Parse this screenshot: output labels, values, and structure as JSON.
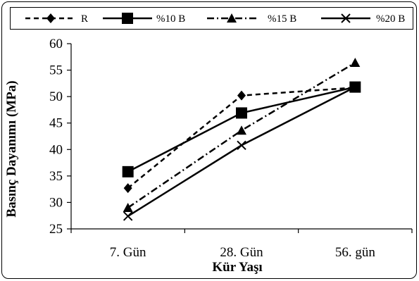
{
  "chart_data": {
    "type": "line",
    "categories": [
      "7. Gün",
      "28. Gün",
      "56. gün"
    ],
    "series": [
      {
        "name": "R",
        "values": [
          32.7,
          50.2,
          51.7
        ],
        "color": "#000000",
        "dash": "dashed",
        "marker": "diamond"
      },
      {
        "name": "%10 B",
        "values": [
          35.8,
          46.9,
          51.8
        ],
        "color": "#000000",
        "dash": "solid",
        "marker": "square"
      },
      {
        "name": "%15 B",
        "values": [
          29.0,
          43.6,
          56.4
        ],
        "color": "#000000",
        "dash": "dashdot",
        "marker": "triangle"
      },
      {
        "name": "%20 B",
        "values": [
          27.4,
          40.8,
          51.8
        ],
        "color": "#000000",
        "dash": "solid",
        "marker": "x"
      }
    ],
    "xlabel": "Kür Yaşı",
    "ylabel": "Basınç Dayanımı (MPa)",
    "ylim": [
      25,
      60
    ],
    "yticks": [
      "25",
      "30",
      "35",
      "40",
      "45",
      "50",
      "55",
      "60"
    ],
    "grid": false,
    "legend_position": "top"
  }
}
